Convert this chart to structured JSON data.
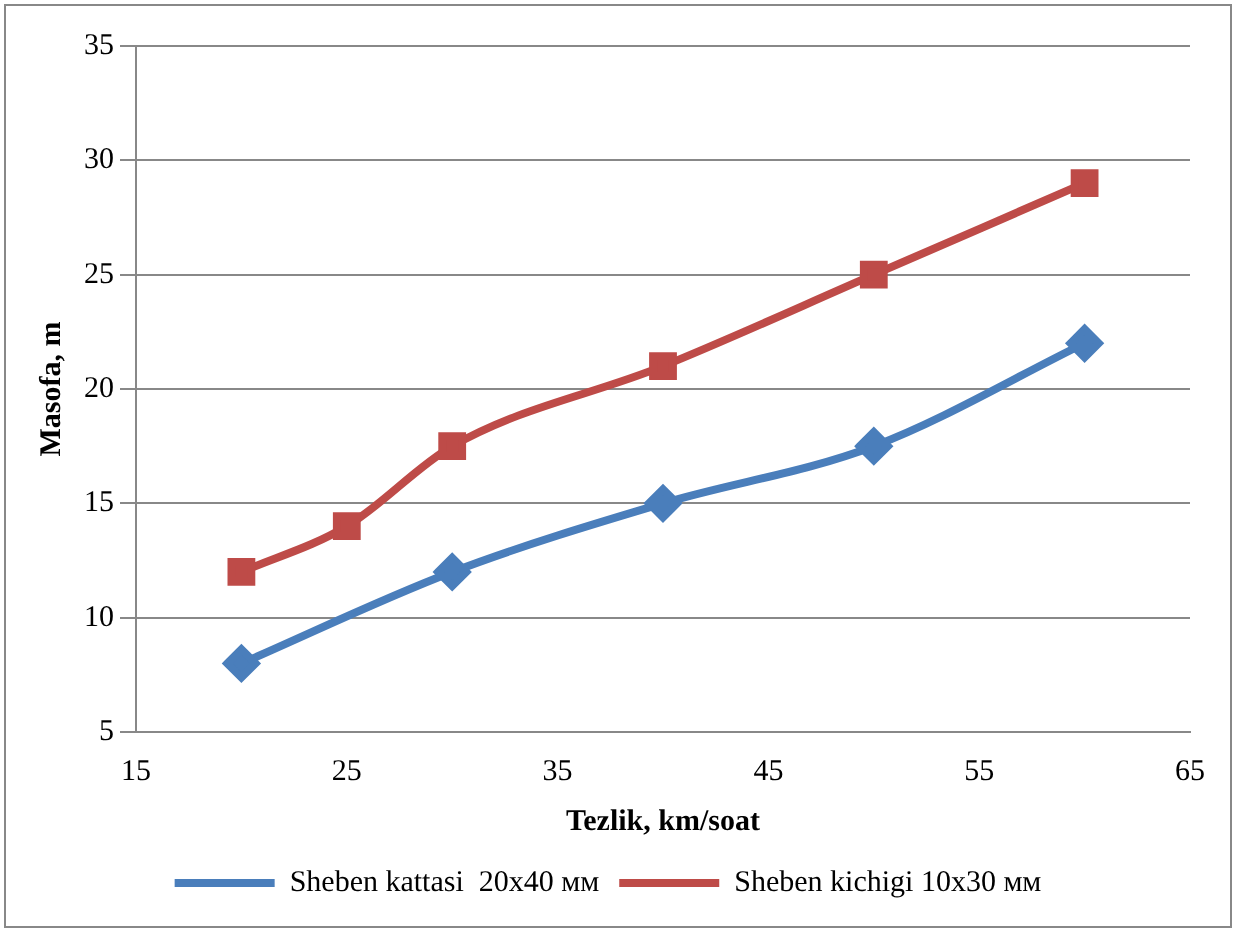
{
  "chart_data": {
    "type": "line",
    "xlabel": "Tezlik, km/soat",
    "ylabel": "Masofa, m",
    "xlim": [
      15,
      65
    ],
    "xticks": [
      15,
      25,
      35,
      45,
      55,
      65
    ],
    "ylim": [
      5,
      35
    ],
    "yticks": [
      5,
      10,
      15,
      20,
      25,
      30,
      35
    ],
    "grid": "y",
    "legend": "bottom",
    "line_style": "solid",
    "series": [
      {
        "name": "Sheben kattasi  20x40 мм",
        "color": "#4a7ebb",
        "marker": "diamond",
        "x": [
          20,
          30,
          40,
          50,
          60
        ],
        "values": [
          8,
          12,
          15,
          17.5,
          22
        ]
      },
      {
        "name": "Sheben kichigi 10x30 мм",
        "color": "#be4b48",
        "marker": "square",
        "x": [
          20,
          25,
          30,
          40,
          50,
          60
        ],
        "values": [
          12,
          14,
          17.5,
          21,
          25,
          29
        ]
      }
    ]
  }
}
